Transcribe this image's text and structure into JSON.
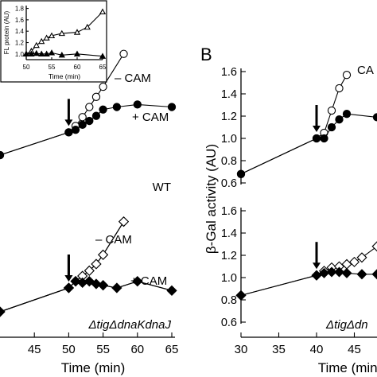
{
  "panel_b_label": "B",
  "chart_data": [
    {
      "id": "inset",
      "type": "line",
      "ylabel": "FL protein (AU)",
      "xlabel": "Time (min)",
      "xlim": [
        50,
        65
      ],
      "ylim": [
        0.9,
        1.85
      ],
      "xticks": [
        50,
        55,
        60,
        65
      ],
      "yticks": [
        1.0,
        1.2,
        1.4,
        1.6,
        1.8
      ],
      "ytick_labels": [
        "1.0",
        "1.2",
        "1.4",
        "1.6",
        "1.8"
      ],
      "series": [
        {
          "marker": "open-triangle",
          "x": [
            50,
            51,
            52,
            53,
            54,
            55,
            57,
            60,
            62,
            65
          ],
          "y": [
            1.0,
            1.05,
            1.15,
            1.22,
            1.28,
            1.32,
            1.36,
            1.38,
            1.47,
            1.74
          ]
        },
        {
          "marker": "filled-triangle",
          "x": [
            50,
            51,
            52,
            53,
            54,
            55,
            57,
            60,
            65
          ],
          "y": [
            1.0,
            1.0,
            1.01,
            1.0,
            1.0,
            1.02,
            0.98,
            1.0,
            0.96
          ]
        }
      ]
    },
    {
      "id": "A-top",
      "type": "line",
      "xlim": [
        40,
        65
      ],
      "annotations": [
        "– CAM",
        "+ CAM",
        "WT"
      ],
      "arrow_at": 50,
      "series": [
        {
          "marker": "open-circle",
          "x": [
            40,
            50,
            51,
            52,
            53,
            54,
            55,
            58
          ],
          "y": [
            0.82,
            1.0,
            1.05,
            1.12,
            1.2,
            1.28,
            1.36,
            1.62
          ]
        },
        {
          "marker": "filled-circle",
          "x": [
            40,
            50,
            51,
            52,
            53,
            54,
            55,
            57,
            60,
            65
          ],
          "y": [
            0.82,
            1.0,
            1.02,
            1.06,
            1.09,
            1.13,
            1.18,
            1.2,
            1.22,
            1.2
          ]
        }
      ]
    },
    {
      "id": "A-bottom",
      "type": "line",
      "xlabel": "Time (min)",
      "xlim": [
        40,
        65
      ],
      "xticks": [
        45,
        50,
        55,
        60,
        65
      ],
      "annotations": [
        "– CAM",
        "+ CAM",
        "ΔtigΔdnaKdnaJ"
      ],
      "arrow_at": 50,
      "series": [
        {
          "marker": "open-diamond",
          "x": [
            40,
            50,
            51,
            52,
            53,
            54,
            55,
            58
          ],
          "y": [
            0.82,
            1.0,
            1.05,
            1.09,
            1.13,
            1.18,
            1.25,
            1.5
          ]
        },
        {
          "marker": "filled-diamond",
          "x": [
            40,
            50,
            51,
            52,
            53,
            54,
            55,
            57,
            60,
            65
          ],
          "y": [
            0.82,
            1.0,
            1.05,
            1.04,
            1.05,
            1.03,
            1.02,
            1.0,
            1.05,
            0.98
          ]
        }
      ]
    },
    {
      "id": "B-top",
      "type": "line",
      "xlim": [
        30,
        48
      ],
      "ylim": [
        0.6,
        1.6
      ],
      "yticks": [
        0.6,
        0.8,
        1.0,
        1.2,
        1.4,
        1.6
      ],
      "ytick_labels": [
        "0.6",
        "0.8",
        "1.0",
        "1.2",
        "1.4",
        "1.6"
      ],
      "annotations": [
        "CA"
      ],
      "arrow_at": 40,
      "series": [
        {
          "marker": "open-circle",
          "x": [
            30,
            40,
            41,
            42,
            43,
            44
          ],
          "y": [
            0.68,
            1.0,
            1.05,
            1.25,
            1.45,
            1.57
          ]
        },
        {
          "marker": "filled-circle",
          "x": [
            30,
            40,
            41,
            42,
            43,
            44,
            48
          ],
          "y": [
            0.68,
            1.0,
            1.0,
            1.1,
            1.17,
            1.22,
            1.19
          ]
        }
      ]
    },
    {
      "id": "B-bottom",
      "type": "line",
      "xlabel": "Time (min)",
      "ylabel": "β-Gal activity (AU)",
      "xlim": [
        30,
        48
      ],
      "ylim": [
        0.6,
        1.6
      ],
      "xticks": [
        30,
        35,
        40,
        45
      ],
      "yticks": [
        0.6,
        0.8,
        1.0,
        1.2,
        1.4,
        1.6
      ],
      "ytick_labels": [
        "0.6",
        "0.8",
        "1.0",
        "1.2",
        "1.4",
        "1.6"
      ],
      "annotations": [
        "ΔtigΔdn"
      ],
      "arrow_at": 40,
      "series": [
        {
          "marker": "open-diamond",
          "x": [
            30,
            40,
            41,
            42,
            43,
            44,
            45,
            46,
            48
          ],
          "y": [
            0.84,
            1.02,
            1.06,
            1.09,
            1.1,
            1.12,
            1.14,
            1.18,
            1.28
          ]
        },
        {
          "marker": "filled-diamond",
          "x": [
            30,
            40,
            41,
            42,
            43,
            44,
            46,
            48
          ],
          "y": [
            0.84,
            1.02,
            1.04,
            1.05,
            1.05,
            1.04,
            1.03,
            1.03
          ]
        }
      ]
    }
  ]
}
